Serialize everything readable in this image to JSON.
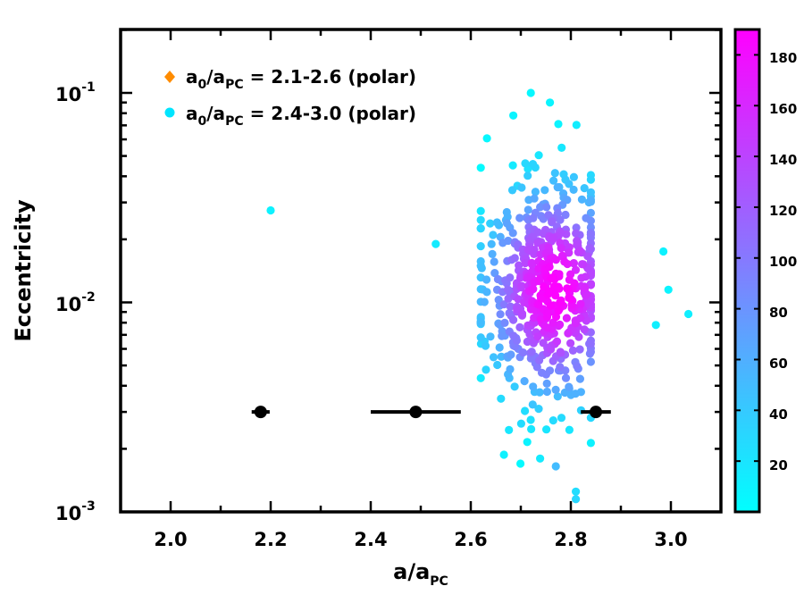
{
  "chart_data": {
    "type": "scatter",
    "xlabel": {
      "main": "a/a",
      "sub": "PC"
    },
    "ylabel": "Eccentricity",
    "xlim": [
      1.9,
      3.1
    ],
    "ylim": [
      0.001,
      0.2
    ],
    "yscale": "log",
    "x_ticks": [
      {
        "value": 2.0,
        "label": "2.0"
      },
      {
        "value": 2.2,
        "label": "2.2"
      },
      {
        "value": 2.4,
        "label": "2.4"
      },
      {
        "value": 2.6,
        "label": "2.6"
      },
      {
        "value": 2.8,
        "label": "2.8"
      },
      {
        "value": 3.0,
        "label": "3.0"
      }
    ],
    "y_ticks": [
      {
        "value": 0.1,
        "base": "10",
        "exp": "-1"
      },
      {
        "value": 0.01,
        "base": "10",
        "exp": "-2"
      },
      {
        "value": 0.001,
        "base": "10",
        "exp": "-3"
      }
    ],
    "legend": {
      "position": "top-left",
      "entries": [
        {
          "label_main": "a",
          "label_sub0": "0",
          "label_mid": "/a",
          "label_sub1": "PC",
          "label_tail": " = 2.1-2.6 (polar)",
          "marker": "diamond",
          "color": "#ff8c00"
        },
        {
          "label_main": "a",
          "label_sub0": "0",
          "label_mid": "/a",
          "label_sub1": "PC",
          "label_tail": " = 2.4-3.0 (polar)",
          "marker": "circle",
          "color": "#00e5ff"
        }
      ]
    },
    "colorbar": {
      "range": [
        0,
        190
      ],
      "ticks": [
        "20",
        "40",
        "60",
        "80",
        "100",
        "120",
        "140",
        "160",
        "180"
      ],
      "tick_values": [
        20,
        40,
        60,
        80,
        100,
        120,
        140,
        160,
        180
      ],
      "color_low": "#00ffff",
      "color_high": "#ff00ff"
    },
    "outliers": [
      {
        "x": 2.2,
        "y": 0.0275,
        "c": 10
      },
      {
        "x": 2.53,
        "y": 0.019,
        "c": 15
      },
      {
        "x": 2.72,
        "y": 0.1,
        "c": 5
      },
      {
        "x": 2.685,
        "y": 0.078,
        "c": 8
      },
      {
        "x": 2.775,
        "y": 0.071,
        "c": 8
      },
      {
        "x": 2.97,
        "y": 0.0078,
        "c": 12
      },
      {
        "x": 2.985,
        "y": 0.0175,
        "c": 10
      },
      {
        "x": 2.995,
        "y": 0.0115,
        "c": 8
      },
      {
        "x": 3.035,
        "y": 0.0088,
        "c": 12
      },
      {
        "x": 2.81,
        "y": 0.00115,
        "c": 30
      },
      {
        "x": 2.81,
        "y": 0.00125,
        "c": 25
      },
      {
        "x": 2.77,
        "y": 0.00165,
        "c": 50
      }
    ],
    "cluster": {
      "count": 560,
      "x_center": 2.74,
      "x_spread": 0.07,
      "log_y_center": -1.93,
      "log_y_spread": 0.28,
      "x_min": 2.62,
      "x_max": 2.84
    },
    "error_points": [
      {
        "x": 2.18,
        "y": 0.003,
        "xerr": 0.018
      },
      {
        "x": 2.49,
        "y": 0.003,
        "xerr": 0.09
      },
      {
        "x": 2.85,
        "y": 0.003,
        "xerr": 0.03
      }
    ],
    "grid": false
  }
}
